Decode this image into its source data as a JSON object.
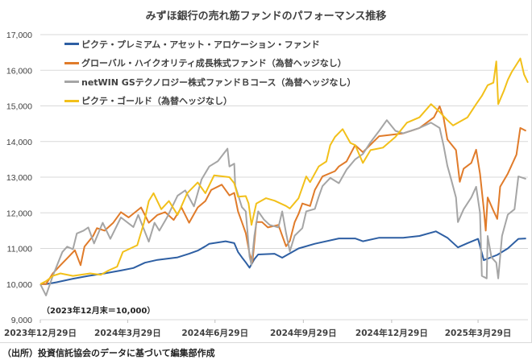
{
  "chart_data": {
    "type": "line",
    "title": "みずほ銀行の売れ筋ファンドのパフォーマンス推移",
    "xlabel": "",
    "ylabel": "",
    "x_unit": "days since 2023-12-29",
    "xlim": [
      0,
      508
    ],
    "ylim": [
      9000,
      17000
    ],
    "yticks": [
      9000,
      10000,
      11000,
      12000,
      13000,
      14000,
      15000,
      16000,
      17000
    ],
    "ytick_labels": [
      "9,000",
      "10,000",
      "11,000",
      "12,000",
      "13,000",
      "14,000",
      "15,000",
      "16,000",
      "17,000"
    ],
    "xticks": [
      0,
      91,
      182,
      274,
      366,
      456
    ],
    "xtick_labels": [
      "2023年12月29日",
      "2024年3月29日",
      "2024年6月29日",
      "2024年9月29日",
      "2024年12月29日",
      "2025年3月29日"
    ],
    "grid": true,
    "legend_position": "top-left",
    "annotation": "（2023年12月末＝10,000）",
    "source": "（出所）投資信託協会のデータに基づいて編集部作成",
    "series": [
      {
        "name": "ピクテ・プレミアム・アセット・アロケーション・ファンド",
        "color": "#2e5fa3",
        "points": [
          [
            0,
            10000
          ],
          [
            6,
            10000
          ],
          [
            17,
            10050
          ],
          [
            34,
            10150
          ],
          [
            50,
            10230
          ],
          [
            67,
            10300
          ],
          [
            84,
            10380
          ],
          [
            97,
            10450
          ],
          [
            109,
            10600
          ],
          [
            122,
            10680
          ],
          [
            143,
            10750
          ],
          [
            155,
            10850
          ],
          [
            164,
            10940
          ],
          [
            172,
            11060
          ],
          [
            176,
            11130
          ],
          [
            193,
            11200
          ],
          [
            202,
            11150
          ],
          [
            206,
            10900
          ],
          [
            210,
            10750
          ],
          [
            214,
            10610
          ],
          [
            218,
            10460
          ],
          [
            223,
            10700
          ],
          [
            227,
            10830
          ],
          [
            244,
            10850
          ],
          [
            252,
            10740
          ],
          [
            269,
            11000
          ],
          [
            286,
            11130
          ],
          [
            311,
            11280
          ],
          [
            328,
            11280
          ],
          [
            336,
            11200
          ],
          [
            353,
            11300
          ],
          [
            378,
            11300
          ],
          [
            395,
            11350
          ],
          [
            412,
            11480
          ],
          [
            424,
            11300
          ],
          [
            435,
            11030
          ],
          [
            445,
            11150
          ],
          [
            456,
            11270
          ],
          [
            462,
            10670
          ],
          [
            476,
            10820
          ],
          [
            487,
            11000
          ],
          [
            498,
            11270
          ],
          [
            506,
            11280
          ]
        ]
      },
      {
        "name": "グローバル・ハイクオリティ成長株式ファンド（為替ヘッジなし）",
        "color": "#e07b2a",
        "points": [
          [
            0,
            10000
          ],
          [
            6,
            10000
          ],
          [
            13,
            10300
          ],
          [
            21,
            10530
          ],
          [
            29,
            10750
          ],
          [
            36,
            10950
          ],
          [
            42,
            10530
          ],
          [
            46,
            11050
          ],
          [
            55,
            11350
          ],
          [
            59,
            11570
          ],
          [
            67,
            11500
          ],
          [
            76,
            11720
          ],
          [
            84,
            12020
          ],
          [
            92,
            11870
          ],
          [
            105,
            12150
          ],
          [
            113,
            11720
          ],
          [
            122,
            11940
          ],
          [
            130,
            12020
          ],
          [
            139,
            11800
          ],
          [
            147,
            12150
          ],
          [
            155,
            11720
          ],
          [
            164,
            12150
          ],
          [
            172,
            12330
          ],
          [
            178,
            12640
          ],
          [
            189,
            12790
          ],
          [
            197,
            12490
          ],
          [
            202,
            12560
          ],
          [
            206,
            12040
          ],
          [
            210,
            11740
          ],
          [
            214,
            11430
          ],
          [
            218,
            10850
          ],
          [
            221,
            10620
          ],
          [
            225,
            11740
          ],
          [
            231,
            11740
          ],
          [
            237,
            11590
          ],
          [
            248,
            11660
          ],
          [
            252,
            11360
          ],
          [
            256,
            11060
          ],
          [
            260,
            11210
          ],
          [
            265,
            11740
          ],
          [
            269,
            11970
          ],
          [
            273,
            12260
          ],
          [
            281,
            12190
          ],
          [
            286,
            12640
          ],
          [
            294,
            13020
          ],
          [
            307,
            13170
          ],
          [
            311,
            13300
          ],
          [
            319,
            13440
          ],
          [
            328,
            13900
          ],
          [
            336,
            13700
          ],
          [
            353,
            14150
          ],
          [
            378,
            14230
          ],
          [
            395,
            14380
          ],
          [
            410,
            14680
          ],
          [
            416,
            14990
          ],
          [
            420,
            14680
          ],
          [
            424,
            14060
          ],
          [
            433,
            13760
          ],
          [
            437,
            12870
          ],
          [
            441,
            13240
          ],
          [
            449,
            13400
          ],
          [
            454,
            13770
          ],
          [
            458,
            13100
          ],
          [
            462,
            12100
          ],
          [
            464,
            11500
          ],
          [
            466,
            12430
          ],
          [
            472,
            12060
          ],
          [
            476,
            11830
          ],
          [
            479,
            12730
          ],
          [
            487,
            13100
          ],
          [
            496,
            13630
          ],
          [
            500,
            14380
          ],
          [
            506,
            14300
          ]
        ]
      },
      {
        "name": "netWIN GSテクノロジー株式ファンドＢコース（為替ヘッジなし）",
        "color": "#a5a5a5",
        "points": [
          [
            0,
            10000
          ],
          [
            6,
            9680
          ],
          [
            13,
            10230
          ],
          [
            23,
            10900
          ],
          [
            28,
            11050
          ],
          [
            34,
            10980
          ],
          [
            38,
            11420
          ],
          [
            45,
            11500
          ],
          [
            50,
            11590
          ],
          [
            56,
            11140
          ],
          [
            65,
            11720
          ],
          [
            73,
            11270
          ],
          [
            84,
            11870
          ],
          [
            97,
            11600
          ],
          [
            102,
            11940
          ],
          [
            113,
            11190
          ],
          [
            119,
            11720
          ],
          [
            124,
            11500
          ],
          [
            132,
            11870
          ],
          [
            143,
            12480
          ],
          [
            151,
            12630
          ],
          [
            160,
            12180
          ],
          [
            168,
            12940
          ],
          [
            176,
            13300
          ],
          [
            185,
            13450
          ],
          [
            195,
            13800
          ],
          [
            197,
            13300
          ],
          [
            202,
            13380
          ],
          [
            203,
            12760
          ],
          [
            210,
            12160
          ],
          [
            214,
            12040
          ],
          [
            218,
            10770
          ],
          [
            220,
            10540
          ],
          [
            223,
            11360
          ],
          [
            227,
            12040
          ],
          [
            233,
            11810
          ],
          [
            239,
            11660
          ],
          [
            248,
            11590
          ],
          [
            252,
            12040
          ],
          [
            256,
            11430
          ],
          [
            260,
            10920
          ],
          [
            265,
            11360
          ],
          [
            273,
            11570
          ],
          [
            277,
            12040
          ],
          [
            286,
            12110
          ],
          [
            290,
            12450
          ],
          [
            294,
            12750
          ],
          [
            302,
            12980
          ],
          [
            311,
            12830
          ],
          [
            319,
            13210
          ],
          [
            328,
            13500
          ],
          [
            336,
            13650
          ],
          [
            344,
            13980
          ],
          [
            353,
            14300
          ],
          [
            361,
            14600
          ],
          [
            370,
            14300
          ],
          [
            378,
            14230
          ],
          [
            395,
            14380
          ],
          [
            407,
            14530
          ],
          [
            416,
            14380
          ],
          [
            420,
            13900
          ],
          [
            424,
            13320
          ],
          [
            428,
            12940
          ],
          [
            433,
            12430
          ],
          [
            435,
            11740
          ],
          [
            441,
            12100
          ],
          [
            449,
            12430
          ],
          [
            454,
            12730
          ],
          [
            458,
            12000
          ],
          [
            460,
            10230
          ],
          [
            465,
            10160
          ],
          [
            466,
            11350
          ],
          [
            470,
            10750
          ],
          [
            475,
            10600
          ],
          [
            477,
            10160
          ],
          [
            481,
            11350
          ],
          [
            487,
            11950
          ],
          [
            494,
            12100
          ],
          [
            498,
            13020
          ],
          [
            506,
            12950
          ]
        ]
      },
      {
        "name": "ピクテ・ゴールド（為替ヘッジなし）",
        "color": "#f2c01a",
        "points": [
          [
            0,
            10000
          ],
          [
            6,
            10080
          ],
          [
            13,
            10230
          ],
          [
            21,
            10300
          ],
          [
            34,
            10230
          ],
          [
            52,
            10300
          ],
          [
            63,
            10260
          ],
          [
            71,
            10380
          ],
          [
            80,
            10490
          ],
          [
            86,
            10900
          ],
          [
            101,
            11090
          ],
          [
            108,
            11720
          ],
          [
            113,
            12330
          ],
          [
            118,
            12550
          ],
          [
            126,
            12100
          ],
          [
            134,
            12330
          ],
          [
            143,
            11940
          ],
          [
            153,
            12550
          ],
          [
            164,
            12850
          ],
          [
            172,
            12550
          ],
          [
            181,
            13050
          ],
          [
            197,
            13000
          ],
          [
            202,
            12830
          ],
          [
            206,
            12450
          ],
          [
            214,
            12470
          ],
          [
            217,
            12260
          ],
          [
            220,
            11660
          ],
          [
            225,
            12260
          ],
          [
            235,
            12410
          ],
          [
            244,
            12340
          ],
          [
            256,
            12190
          ],
          [
            260,
            12120
          ],
          [
            269,
            12410
          ],
          [
            273,
            12710
          ],
          [
            277,
            13020
          ],
          [
            281,
            12860
          ],
          [
            290,
            13300
          ],
          [
            298,
            13440
          ],
          [
            302,
            13900
          ],
          [
            307,
            14130
          ],
          [
            315,
            14350
          ],
          [
            323,
            13960
          ],
          [
            328,
            13900
          ],
          [
            336,
            13400
          ],
          [
            344,
            13760
          ],
          [
            357,
            13830
          ],
          [
            370,
            14130
          ],
          [
            382,
            14530
          ],
          [
            395,
            14680
          ],
          [
            407,
            15050
          ],
          [
            416,
            14830
          ],
          [
            424,
            14600
          ],
          [
            430,
            14450
          ],
          [
            445,
            14680
          ],
          [
            454,
            15050
          ],
          [
            460,
            15280
          ],
          [
            466,
            15580
          ],
          [
            472,
            15650
          ],
          [
            475,
            16250
          ],
          [
            477,
            15050
          ],
          [
            483,
            15430
          ],
          [
            487,
            15730
          ],
          [
            491,
            15950
          ],
          [
            500,
            16330
          ],
          [
            504,
            15880
          ],
          [
            508,
            15650
          ]
        ]
      }
    ]
  }
}
